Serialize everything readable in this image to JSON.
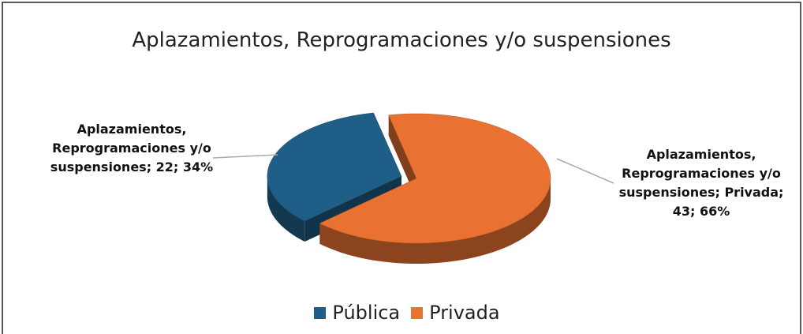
{
  "chart_data": {
    "type": "pie3d",
    "title": "Aplazamientos, Reprogramaciones y/o suspensiones",
    "categories": [
      "Pública",
      "Privada"
    ],
    "values": [
      22,
      43
    ],
    "value_labels": [
      "Aplazamientos, Reprogramaciones y/o suspensiones; 22; 34%",
      "Aplazamientos, Reprogramaciones y/o suspensiones; Privada; 43; 66%"
    ],
    "colors": [
      "#1f5f87",
      "#e97132"
    ],
    "legend": "bottom"
  }
}
